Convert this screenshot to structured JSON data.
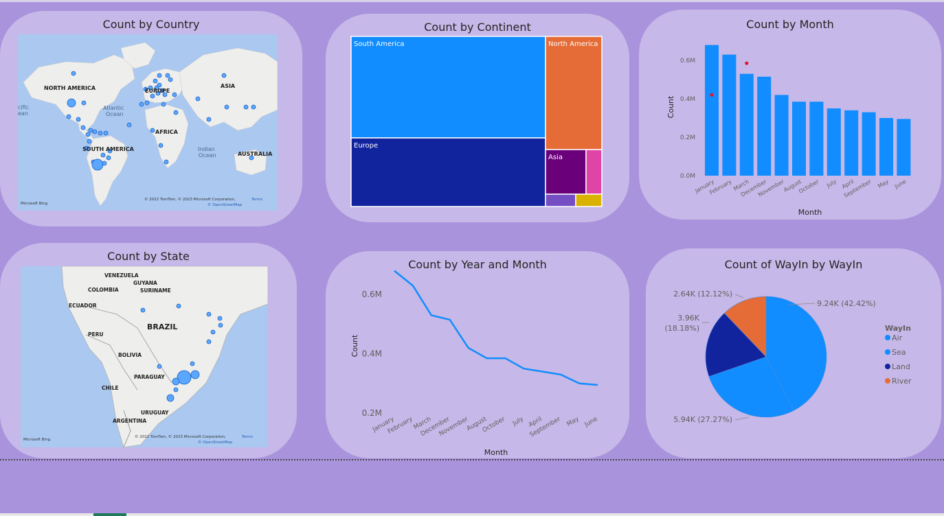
{
  "visuals": {
    "country_map": {
      "title": "Count by Country",
      "labels": [
        "NORTH AMERICA",
        "EUROPE",
        "ASIA",
        "Atlantic",
        "Ocean",
        "AFRICA",
        "SOUTH AMERICA",
        "Indian",
        "Ocean",
        "AUSTRALIA",
        "cific",
        "ean"
      ],
      "attribution": "© 2022 TomTom, © 2023 Microsoft Corporation,",
      "terms": "Terms",
      "osm": "© OpenStreetMap",
      "brand": "Microsoft Bing"
    },
    "state_map": {
      "title": "Count by State",
      "labels": [
        "VENEZUELA",
        "GUYANA",
        "COLOMBIA",
        "SURINAME",
        "ECUADOR",
        "BRAZIL",
        "PERU",
        "BOLIVIA",
        "PARAGUAY",
        "CHILE",
        "URUGUAY",
        "ARGENTINA"
      ],
      "attribution": "© 2022 TomTom, © 2023 Microsoft Corporation,",
      "terms": "Terms",
      "osm": "© OpenStreetMap",
      "brand": "Microsoft Bing"
    }
  },
  "colors": {
    "background": "#a993dc",
    "card": "#c6b8e8",
    "primary_blue": "#118dff",
    "dark_blue": "#12239e",
    "orange": "#e66c37",
    "purple": "#6b007b",
    "pink": "#e044a7",
    "violet": "#744ec2",
    "gold": "#d9b300",
    "red_marker": "#e81123"
  },
  "chart_data": [
    {
      "type": "treemap",
      "title": "Count by Continent",
      "categories": [
        "South America",
        "Europe",
        "North America",
        "Asia",
        "",
        "",
        ""
      ],
      "colors": [
        "#118dff",
        "#12239e",
        "#e66c37",
        "#6b007b",
        "#e044a7",
        "#744ec2",
        "#d9b300"
      ]
    },
    {
      "type": "bar",
      "title": "Count by Month",
      "xlabel": "Month",
      "ylabel": "Count",
      "categories": [
        "January",
        "February",
        "March",
        "December",
        "November",
        "August",
        "October",
        "July",
        "April",
        "September",
        "May",
        "June"
      ],
      "values": [
        0.68,
        0.63,
        0.53,
        0.515,
        0.42,
        0.385,
        0.385,
        0.35,
        0.34,
        0.33,
        0.3,
        0.295
      ],
      "ylim": [
        0,
        0.7
      ],
      "yticks": [
        0,
        0.2,
        0.4,
        0.6
      ],
      "ytick_labels": [
        "0.0M",
        "0.2M",
        "0.4M",
        "0.6M"
      ],
      "markers": [
        {
          "category": "January",
          "value": 0.42
        },
        {
          "category": "March",
          "value": 0.585
        }
      ]
    },
    {
      "type": "line",
      "title": "Count by Year and Month",
      "xlabel": "Month",
      "ylabel": "Count",
      "categories": [
        "January",
        "February",
        "March",
        "December",
        "November",
        "August",
        "October",
        "July",
        "April",
        "September",
        "May",
        "June"
      ],
      "values": [
        0.68,
        0.63,
        0.53,
        0.515,
        0.42,
        0.385,
        0.385,
        0.35,
        0.34,
        0.33,
        0.3,
        0.295
      ],
      "ylim": [
        0.2,
        0.7
      ],
      "yticks": [
        0.2,
        0.4,
        0.6
      ],
      "ytick_labels": [
        "0.2M",
        "0.4M",
        "0.6M"
      ]
    },
    {
      "type": "pie",
      "title": "Count of WayIn by WayIn",
      "legend_title": "WayIn",
      "legend_position": "right",
      "slices": [
        {
          "label": "Air",
          "value": 9.24,
          "display": "9.24K (42.42%)",
          "color": "#118dff"
        },
        {
          "label": "Sea",
          "value": 5.94,
          "display": "5.94K (27.27%)",
          "color": "#118dff"
        },
        {
          "label": "Land",
          "value": 3.96,
          "display": "3.96K (18.18%)",
          "color": "#12239e"
        },
        {
          "label": "River",
          "value": 2.64,
          "display": "2.64K (12.12%)",
          "color": "#e66c37"
        }
      ]
    }
  ]
}
